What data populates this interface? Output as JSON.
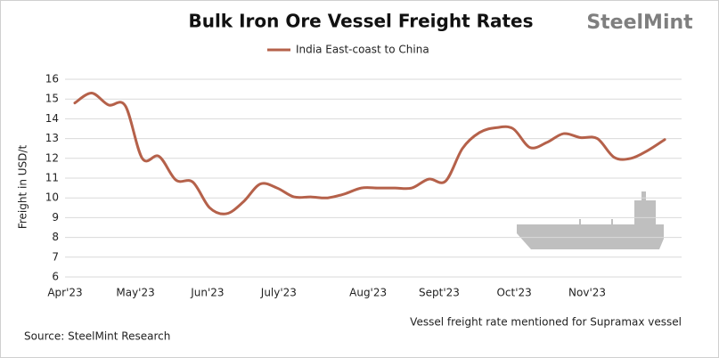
{
  "chart_data": {
    "type": "line",
    "title": "Bulk Iron Ore Vessel Freight Rates",
    "brand": "SteelMint",
    "y_label": "Freight in USD/t",
    "note": "Vessel freight rate mentioned for Supramax vessel",
    "source": "Source: SteelMint Research",
    "x": [
      0,
      1,
      2,
      3,
      4,
      5,
      6,
      7,
      8,
      9,
      10,
      11,
      12,
      13,
      14,
      15,
      16,
      17,
      18,
      19,
      20,
      21,
      22,
      23,
      24,
      25,
      26,
      27,
      28,
      29,
      30,
      31,
      32,
      33,
      34,
      35
    ],
    "series": [
      {
        "name": "India East-coast to China",
        "color": "#b5614a",
        "values": [
          14.8,
          15.3,
          14.7,
          14.65,
          12.0,
          12.1,
          10.9,
          10.8,
          9.5,
          9.2,
          9.8,
          10.7,
          10.5,
          10.05,
          10.05,
          10.0,
          10.2,
          10.5,
          10.5,
          10.5,
          10.5,
          10.95,
          10.85,
          12.5,
          13.3,
          13.55,
          13.5,
          12.55,
          12.8,
          13.25,
          13.05,
          13.0,
          12.05,
          12.0,
          12.4,
          12.95
        ]
      }
    ],
    "xlim": [
      -0.58,
      36
    ],
    "xticks": [
      {
        "value": -0.58,
        "label": "Apr'23"
      },
      {
        "value": 3.6,
        "label": "May'23"
      },
      {
        "value": 7.87,
        "label": "Jun'23"
      },
      {
        "value": 12.1,
        "label": "July'23"
      },
      {
        "value": 17.4,
        "label": "Aug'23"
      },
      {
        "value": 21.62,
        "label": "Sept'23"
      },
      {
        "value": 26.07,
        "label": "Oct'23"
      },
      {
        "value": 30.4,
        "label": "Nov'23"
      }
    ],
    "ylim": [
      6,
      16
    ],
    "yticks": [
      6,
      7,
      8,
      9,
      10,
      11,
      12,
      13,
      14,
      15,
      16
    ],
    "grid": true
  }
}
